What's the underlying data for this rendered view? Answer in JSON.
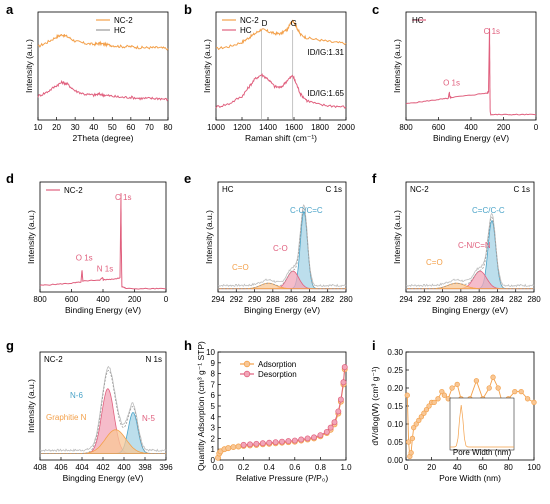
{
  "colors": {
    "orange": "#f3a04a",
    "pink": "#e0607e",
    "blue": "#4aa3c8",
    "gray": "#9a9a9a",
    "light_orange": "#f8c796",
    "light_pink": "#f2a6b8",
    "light_blue": "#a6d3e6"
  },
  "chart_data": [
    {
      "id": "a",
      "letter": "a",
      "type": "line",
      "xlabel": "2Theta (degree)",
      "ylabel": "Intensity (a.u.)",
      "xlim": [
        10,
        80
      ],
      "xticks": [
        "10",
        "20",
        "30",
        "40",
        "50",
        "60",
        "70",
        "80"
      ],
      "legend": [
        {
          "name": "NC-2",
          "color": "orange"
        },
        {
          "name": "HC",
          "color": "gray"
        }
      ],
      "series": [
        {
          "name": "NC-2",
          "color": "orange",
          "x": [
            10,
            15,
            20,
            23,
            26,
            30,
            35,
            40,
            43,
            46,
            50,
            55,
            60,
            65,
            70,
            75,
            80
          ],
          "y": [
            0.68,
            0.72,
            0.77,
            0.79,
            0.77,
            0.73,
            0.71,
            0.7,
            0.71,
            0.7,
            0.69,
            0.68,
            0.68,
            0.67,
            0.67,
            0.67,
            0.66
          ]
        },
        {
          "name": "HC",
          "color": "pink",
          "x": [
            10,
            15,
            20,
            23,
            26,
            30,
            35,
            40,
            43,
            46,
            50,
            55,
            60,
            65,
            70,
            75,
            80
          ],
          "y": [
            0.22,
            0.26,
            0.32,
            0.35,
            0.33,
            0.27,
            0.24,
            0.23,
            0.24,
            0.23,
            0.22,
            0.21,
            0.21,
            0.2,
            0.2,
            0.2,
            0.19
          ]
        }
      ]
    },
    {
      "id": "b",
      "letter": "b",
      "type": "line",
      "xlabel": "Raman shift (cm⁻¹)",
      "ylabel": "Intensity (a.u.)",
      "xlim": [
        1000,
        2000
      ],
      "xticks": [
        "1000",
        "1200",
        "1400",
        "1600",
        "1800",
        "2000"
      ],
      "legend": [
        {
          "name": "NC-2",
          "color": "orange"
        },
        {
          "name": "HC",
          "color": "pink"
        }
      ],
      "peak_labels": [
        {
          "text": "D",
          "x": 1350
        },
        {
          "text": "G",
          "x": 1590
        }
      ],
      "ratio_labels": [
        "ID/IG:1.31",
        "ID/IG:1.65"
      ],
      "vlines": [
        1350,
        1590
      ],
      "series": [
        {
          "name": "NC-2",
          "color": "orange",
          "x": [
            1000,
            1100,
            1200,
            1250,
            1300,
            1350,
            1400,
            1450,
            1500,
            1550,
            1590,
            1620,
            1650,
            1700,
            1800,
            1900,
            2000
          ],
          "y": [
            0.66,
            0.68,
            0.72,
            0.76,
            0.8,
            0.84,
            0.82,
            0.8,
            0.8,
            0.84,
            0.93,
            0.86,
            0.79,
            0.76,
            0.74,
            0.72,
            0.71
          ]
        },
        {
          "name": "HC",
          "color": "pink",
          "x": [
            1000,
            1100,
            1200,
            1250,
            1300,
            1350,
            1400,
            1450,
            1500,
            1550,
            1590,
            1620,
            1650,
            1700,
            1800,
            1900,
            2000
          ],
          "y": [
            0.12,
            0.15,
            0.22,
            0.3,
            0.38,
            0.42,
            0.38,
            0.31,
            0.3,
            0.37,
            0.41,
            0.33,
            0.24,
            0.18,
            0.14,
            0.13,
            0.12
          ]
        }
      ]
    },
    {
      "id": "c",
      "letter": "c",
      "type": "line",
      "xlabel": "Binding Energy (eV)",
      "ylabel": "Intensity (a.u.)",
      "xlim": [
        800,
        0
      ],
      "xticks": [
        "800",
        "600",
        "400",
        "200",
        "0"
      ],
      "legend": [
        {
          "name": "HC",
          "color": "pink"
        }
      ],
      "peak_labels": [
        {
          "text": "O 1s",
          "x": 532,
          "y": 0.3
        },
        {
          "text": "C 1s",
          "x": 284,
          "y": 0.78
        }
      ],
      "series": [
        {
          "name": "HC",
          "color": "pink",
          "x": [
            800,
            700,
            600,
            540,
            533,
            530,
            520,
            400,
            300,
            292,
            286,
            284,
            282,
            278,
            200,
            100,
            0
          ],
          "y": [
            0.15,
            0.17,
            0.19,
            0.2,
            0.26,
            0.21,
            0.21,
            0.23,
            0.25,
            0.26,
            0.85,
            0.4,
            0.08,
            0.05,
            0.05,
            0.05,
            0.05
          ]
        }
      ]
    },
    {
      "id": "d",
      "letter": "d",
      "type": "line",
      "xlabel": "Binding Energy (eV)",
      "ylabel": "Intensity (a.u.)",
      "xlim": [
        800,
        0
      ],
      "xticks": [
        "800",
        "600",
        "400",
        "200",
        "0"
      ],
      "legend": [
        {
          "name": "NC-2",
          "color": "pink"
        }
      ],
      "peak_labels": [
        {
          "text": "O 1s",
          "x": 532,
          "y": 0.27
        },
        {
          "text": "N 1s",
          "x": 400,
          "y": 0.17
        },
        {
          "text": "C 1s",
          "x": 284,
          "y": 0.82
        }
      ],
      "series": [
        {
          "name": "NC-2",
          "color": "pink",
          "x": [
            800,
            700,
            600,
            540,
            533,
            528,
            420,
            402,
            398,
            320,
            292,
            286,
            284,
            280,
            250,
            100,
            0
          ],
          "y": [
            0.06,
            0.07,
            0.08,
            0.09,
            0.2,
            0.1,
            0.11,
            0.13,
            0.11,
            0.12,
            0.13,
            0.9,
            0.45,
            0.05,
            0.03,
            0.03,
            0.03
          ]
        }
      ]
    },
    {
      "id": "e",
      "letter": "e",
      "type": "area",
      "xlabel": "Binging Energy (eV)",
      "ylabel": "Intensity (a.u.)",
      "xlim": [
        294,
        280
      ],
      "xticks": [
        "294",
        "292",
        "290",
        "288",
        "286",
        "284",
        "282",
        "280"
      ],
      "corner_labels": [
        "HC",
        "C 1s"
      ],
      "peaks": [
        {
          "name": "C-C/C=C",
          "color": "blue",
          "center": 284.6,
          "height": 0.7,
          "width": 0.55
        },
        {
          "name": "C-O",
          "color": "pink",
          "center": 285.8,
          "height": 0.16,
          "width": 0.9
        },
        {
          "name": "C=O",
          "color": "orange",
          "center": 288.5,
          "height": 0.05,
          "width": 1.2
        }
      ]
    },
    {
      "id": "f",
      "letter": "f",
      "type": "area",
      "xlabel": "Binging Energy (eV)",
      "ylabel": "Intensity (a.u.)",
      "xlim": [
        294,
        280
      ],
      "xticks": [
        "294",
        "292",
        "290",
        "288",
        "286",
        "284",
        "282",
        "280"
      ],
      "corner_labels": [
        "NC-2",
        "C 1s"
      ],
      "peaks": [
        {
          "name": "C=C/C-C",
          "color": "blue",
          "center": 284.6,
          "height": 0.62,
          "width": 0.6
        },
        {
          "name": "C-N/C=N",
          "color": "pink",
          "center": 285.9,
          "height": 0.16,
          "width": 1.0
        },
        {
          "name": "C=O",
          "color": "orange",
          "center": 288.5,
          "height": 0.05,
          "width": 1.3
        }
      ]
    },
    {
      "id": "g",
      "letter": "g",
      "type": "area",
      "xlabel": "Bingding Energy (eV)",
      "ylabel": "Intensity (a.u.)",
      "xlim": [
        408,
        395
      ],
      "xticks": [
        "408",
        "406",
        "404",
        "402",
        "400",
        "398",
        "396"
      ],
      "corner_labels": [
        "NC-2",
        "N 1s"
      ],
      "peaks": [
        {
          "name": "N-5",
          "color": "pink",
          "center": 401.0,
          "height": 0.6,
          "width": 0.9
        },
        {
          "name": "N-6",
          "color": "blue",
          "center": 398.4,
          "height": 0.38,
          "width": 0.7
        },
        {
          "name": "Graphitie N",
          "color": "orange",
          "center": 400.2,
          "height": 0.22,
          "width": 1.5
        }
      ]
    },
    {
      "id": "h",
      "letter": "h",
      "type": "scatter",
      "xlabel": "Relative Pressure (P/P₀)",
      "ylabel": "Quantity Adsorption (cm³ g⁻¹ STP)",
      "xlim": [
        0,
        1.0
      ],
      "ylim": [
        0,
        10
      ],
      "xticks": [
        "0.0",
        "0.2",
        "0.4",
        "0.6",
        "0.8",
        "1.0"
      ],
      "yticks": [
        "0",
        "1",
        "2",
        "3",
        "4",
        "5",
        "6",
        "7",
        "8",
        "9",
        "10"
      ],
      "legend": [
        {
          "name": "Adsorption",
          "color": "orange"
        },
        {
          "name": "Desorption",
          "color": "pink"
        }
      ],
      "series": [
        {
          "name": "Adsorption",
          "color": "orange",
          "x": [
            0.0,
            0.01,
            0.02,
            0.05,
            0.08,
            0.12,
            0.16,
            0.2,
            0.25,
            0.3,
            0.35,
            0.4,
            0.45,
            0.5,
            0.55,
            0.6,
            0.65,
            0.7,
            0.75,
            0.8,
            0.85,
            0.88,
            0.91,
            0.94,
            0.96,
            0.98,
            0.99
          ],
          "y": [
            0.2,
            0.6,
            0.8,
            1.0,
            1.1,
            1.2,
            1.25,
            1.3,
            1.35,
            1.4,
            1.45,
            1.5,
            1.55,
            1.6,
            1.65,
            1.7,
            1.8,
            1.9,
            2.0,
            2.2,
            2.5,
            2.8,
            3.3,
            4.3,
            5.4,
            7.0,
            8.4
          ]
        },
        {
          "name": "Desorption",
          "color": "pink",
          "x": [
            0.99,
            0.98,
            0.96,
            0.94,
            0.91,
            0.88,
            0.85,
            0.8,
            0.75,
            0.7,
            0.65,
            0.6,
            0.55,
            0.5,
            0.45,
            0.4,
            0.35,
            0.3,
            0.25,
            0.2
          ],
          "y": [
            8.6,
            7.2,
            5.6,
            4.5,
            3.5,
            3.0,
            2.6,
            2.3,
            2.1,
            2.0,
            1.9,
            1.8,
            1.75,
            1.7,
            1.65,
            1.6,
            1.55,
            1.5,
            1.45,
            1.4
          ]
        }
      ]
    },
    {
      "id": "i",
      "letter": "i",
      "type": "line",
      "xlabel": "Pore Width (nm)",
      "ylabel": "dV/dlog(W) (cm³ g⁻¹)",
      "xlim": [
        0,
        100
      ],
      "ylim": [
        0,
        0.3
      ],
      "xticks": [
        "0",
        "20",
        "40",
        "60",
        "80",
        "100"
      ],
      "yticks": [
        "0.00",
        "0.05",
        "0.10",
        "0.15",
        "0.20",
        "0.25",
        "0.30"
      ],
      "inset_xlabel": "Pore Width (nm)",
      "series": [
        {
          "name": "dV/dlog(W)",
          "color": "orange",
          "x": [
            1,
            2,
            3,
            4,
            5,
            6,
            8,
            10,
            12,
            14,
            16,
            18,
            20,
            22,
            25,
            28,
            30,
            33,
            36,
            40,
            43,
            46,
            50,
            55,
            60,
            65,
            68,
            72,
            76,
            80,
            85,
            90,
            95,
            100
          ],
          "y": [
            0.18,
            0.05,
            0.01,
            0.02,
            0.06,
            0.09,
            0.1,
            0.11,
            0.12,
            0.13,
            0.14,
            0.15,
            0.16,
            0.16,
            0.17,
            0.19,
            0.18,
            0.17,
            0.2,
            0.21,
            0.17,
            0.14,
            0.17,
            0.22,
            0.17,
            0.2,
            0.23,
            0.2,
            0.15,
            0.17,
            0.19,
            0.19,
            0.17,
            0.16
          ]
        }
      ]
    }
  ]
}
